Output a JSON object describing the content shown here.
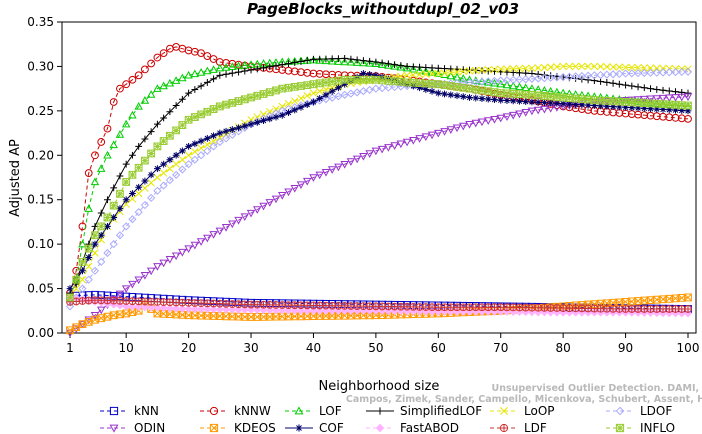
{
  "chart_data": {
    "type": "line",
    "title": "PageBlocks_withoutdupl_02_v03",
    "xlabel": "Neighborhood size",
    "ylabel": "Adjusted AP",
    "xlim": [
      1,
      100
    ],
    "ylim": [
      0,
      0.35
    ],
    "xticks": [
      1,
      10,
      20,
      30,
      40,
      50,
      60,
      70,
      80,
      90,
      100
    ],
    "yticks": [
      0.0,
      0.05,
      0.1,
      0.15,
      0.2,
      0.25,
      0.3,
      0.35
    ],
    "xtick_labels": [
      "1",
      "10",
      "20",
      "30",
      "40",
      "50",
      "60",
      "70",
      "80",
      "90",
      "100"
    ],
    "ytick_labels": [
      "0.00",
      "0.05",
      "0.10",
      "0.15",
      "0.20",
      "0.25",
      "0.30",
      "0.35"
    ],
    "grid": false,
    "legend_position": "bottom",
    "watermark": [
      "Unsupervised Outlier Detection. DAMI, 2015.",
      "Campos, Zimek, Sander, Campello, Micenkova, Schubert, Assent, Houle"
    ],
    "series": [
      {
        "name": "kNN",
        "color": "#0000cc",
        "marker": "square",
        "dash": "dashed",
        "x": [
          1,
          2,
          5,
          10,
          20,
          30,
          40,
          50,
          60,
          70,
          80,
          90,
          100
        ],
        "y": [
          0.04,
          0.042,
          0.043,
          0.041,
          0.037,
          0.034,
          0.033,
          0.032,
          0.031,
          0.03,
          0.029,
          0.028,
          0.027
        ]
      },
      {
        "name": "kNNW",
        "color": "#cc0000",
        "marker": "circle",
        "dash": "dashed",
        "x": [
          1,
          2,
          3,
          4,
          5,
          6,
          7,
          8,
          9,
          10,
          12,
          15,
          17,
          18,
          20,
          22,
          25,
          30,
          35,
          40,
          45,
          50,
          55,
          60,
          65,
          70,
          75,
          80,
          85,
          90,
          95,
          100
        ],
        "y": [
          0.045,
          0.07,
          0.12,
          0.18,
          0.2,
          0.215,
          0.23,
          0.26,
          0.275,
          0.28,
          0.29,
          0.31,
          0.32,
          0.322,
          0.318,
          0.315,
          0.305,
          0.3,
          0.296,
          0.292,
          0.29,
          0.289,
          0.285,
          0.28,
          0.275,
          0.268,
          0.262,
          0.255,
          0.25,
          0.247,
          0.244,
          0.241
        ]
      },
      {
        "name": "LOF",
        "color": "#00cc00",
        "marker": "triangle-up",
        "dash": "dashed",
        "x": [
          1,
          2,
          3,
          4,
          5,
          7,
          10,
          12,
          15,
          20,
          25,
          30,
          35,
          40,
          45,
          50,
          55,
          60,
          65,
          70,
          75,
          80,
          85,
          90,
          95,
          100
        ],
        "y": [
          0.04,
          0.06,
          0.1,
          0.14,
          0.17,
          0.2,
          0.235,
          0.255,
          0.275,
          0.29,
          0.298,
          0.302,
          0.305,
          0.307,
          0.305,
          0.303,
          0.298,
          0.292,
          0.285,
          0.28,
          0.275,
          0.27,
          0.266,
          0.262,
          0.258,
          0.255
        ]
      },
      {
        "name": "SimplifiedLOF",
        "color": "#000000",
        "marker": "plus",
        "dash": "solid",
        "x": [
          1,
          2,
          3,
          4,
          5,
          7,
          10,
          12,
          15,
          20,
          25,
          30,
          35,
          40,
          45,
          50,
          55,
          60,
          65,
          70,
          75,
          80,
          85,
          90,
          95,
          100
        ],
        "y": [
          0.045,
          0.055,
          0.08,
          0.1,
          0.12,
          0.15,
          0.19,
          0.21,
          0.235,
          0.27,
          0.29,
          0.296,
          0.302,
          0.308,
          0.309,
          0.305,
          0.3,
          0.298,
          0.296,
          0.294,
          0.292,
          0.288,
          0.284,
          0.279,
          0.274,
          0.27
        ]
      },
      {
        "name": "LoOP",
        "color": "#e6e600",
        "marker": "x",
        "dash": "dashed",
        "x": [
          1,
          3,
          5,
          7,
          10,
          15,
          20,
          25,
          30,
          35,
          40,
          45,
          50,
          55,
          60,
          65,
          70,
          75,
          80,
          85,
          90,
          95,
          100
        ],
        "y": [
          0.04,
          0.06,
          0.09,
          0.12,
          0.145,
          0.175,
          0.2,
          0.22,
          0.24,
          0.255,
          0.27,
          0.28,
          0.285,
          0.29,
          0.292,
          0.295,
          0.297,
          0.298,
          0.3,
          0.3,
          0.299,
          0.298,
          0.297
        ]
      },
      {
        "name": "LDOF",
        "color": "#aaaaff",
        "marker": "diamond",
        "dash": "dashed",
        "x": [
          1,
          3,
          5,
          7,
          10,
          15,
          20,
          25,
          30,
          35,
          40,
          45,
          50,
          55,
          60,
          65,
          70,
          75,
          80,
          85,
          90,
          95,
          100
        ],
        "y": [
          0.03,
          0.05,
          0.07,
          0.09,
          0.12,
          0.16,
          0.19,
          0.215,
          0.235,
          0.25,
          0.26,
          0.268,
          0.275,
          0.278,
          0.28,
          0.282,
          0.284,
          0.286,
          0.288,
          0.29,
          0.292,
          0.293,
          0.294
        ]
      },
      {
        "name": "ODIN",
        "color": "#9933cc",
        "marker": "triangle-down",
        "dash": "dashed",
        "x": [
          1,
          5,
          10,
          15,
          20,
          25,
          30,
          35,
          40,
          45,
          50,
          55,
          60,
          65,
          70,
          75,
          80,
          85,
          90,
          95,
          100
        ],
        "y": [
          0.0,
          0.02,
          0.05,
          0.075,
          0.095,
          0.115,
          0.135,
          0.155,
          0.175,
          0.19,
          0.205,
          0.215,
          0.225,
          0.235,
          0.242,
          0.25,
          0.255,
          0.26,
          0.262,
          0.264,
          0.266
        ]
      },
      {
        "name": "KDEOS",
        "color": "#ff9900",
        "marker": "square-x",
        "dash": "dashed",
        "x": [
          1,
          3,
          5,
          8,
          10,
          12,
          13,
          15,
          20,
          30,
          40,
          50,
          60,
          70,
          80,
          90,
          100
        ],
        "y": [
          0.003,
          0.01,
          0.015,
          0.02,
          0.022,
          0.025,
          0.032,
          0.022,
          0.02,
          0.018,
          0.019,
          0.02,
          0.022,
          0.025,
          0.03,
          0.035,
          0.04
        ]
      },
      {
        "name": "COF",
        "color": "#000066",
        "marker": "asterisk",
        "dash": "solid",
        "x": [
          1,
          2,
          3,
          5,
          7,
          10,
          15,
          20,
          25,
          30,
          35,
          40,
          45,
          48,
          50,
          55,
          60,
          65,
          70,
          75,
          80,
          85,
          90,
          95,
          100
        ],
        "y": [
          0.05,
          0.06,
          0.07,
          0.1,
          0.12,
          0.15,
          0.185,
          0.21,
          0.225,
          0.235,
          0.245,
          0.26,
          0.28,
          0.292,
          0.29,
          0.28,
          0.27,
          0.265,
          0.262,
          0.26,
          0.258,
          0.256,
          0.254,
          0.252,
          0.25
        ]
      },
      {
        "name": "FastABOD",
        "color": "#ffb3ff",
        "marker": "diamond-filled",
        "dash": "dashed",
        "x": [
          1,
          5,
          10,
          20,
          30,
          40,
          50,
          60,
          70,
          80,
          90,
          100
        ],
        "y": [
          0.04,
          0.035,
          0.03,
          0.027,
          0.026,
          0.025,
          0.025,
          0.024,
          0.024,
          0.023,
          0.023,
          0.022
        ]
      },
      {
        "name": "LDF",
        "color": "#cc3333",
        "marker": "circle-plus",
        "dash": "dashed",
        "x": [
          1,
          5,
          10,
          20,
          30,
          40,
          50,
          60,
          70,
          80,
          90,
          100
        ],
        "y": [
          0.035,
          0.037,
          0.036,
          0.034,
          0.032,
          0.031,
          0.03,
          0.029,
          0.029,
          0.028,
          0.027,
          0.027
        ]
      },
      {
        "name": "INFLO",
        "color": "#99cc33",
        "marker": "square-star",
        "dash": "dashed",
        "x": [
          1,
          3,
          5,
          7,
          10,
          15,
          20,
          25,
          30,
          35,
          40,
          45,
          50,
          55,
          60,
          65,
          70,
          75,
          80,
          85,
          90,
          95,
          100
        ],
        "y": [
          0.04,
          0.08,
          0.11,
          0.13,
          0.17,
          0.21,
          0.24,
          0.255,
          0.265,
          0.275,
          0.28,
          0.285,
          0.285,
          0.282,
          0.28,
          0.275,
          0.27,
          0.268,
          0.265,
          0.262,
          0.26,
          0.258,
          0.256
        ]
      }
    ]
  }
}
